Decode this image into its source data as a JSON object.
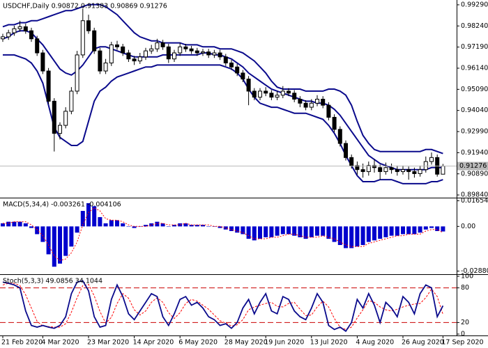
{
  "chart_data": [
    {
      "type": "candlestick",
      "title": "USDCHF,Daily  0.90872 0.91383 0.90869 0.91276",
      "categories": [
        "21 Feb 2020",
        null,
        null,
        null,
        null,
        null,
        null,
        "4 Mar 2020",
        null,
        null,
        null,
        null,
        null,
        null,
        null,
        "23 Mar 2020",
        null,
        null,
        null,
        null,
        null,
        null,
        null,
        "14 Apr 2020",
        null,
        null,
        null,
        null,
        null,
        null,
        null,
        "6 May 2020",
        null,
        null,
        null,
        null,
        null,
        null,
        null,
        "28 May 2020",
        null,
        null,
        null,
        null,
        null,
        null,
        "19 Jun 2020",
        null,
        null,
        null,
        null,
        null,
        null,
        null,
        "13 Jul 2020",
        null,
        null,
        null,
        null,
        null,
        null,
        null,
        "4 Aug 2020",
        null,
        null,
        null,
        null,
        null,
        null,
        null,
        "26 Aug 2020",
        null,
        null,
        null,
        null,
        null,
        null,
        "17 Sep 2020"
      ],
      "open": [
        0.976,
        0.977,
        0.979,
        0.981,
        0.982,
        0.98,
        0.976,
        0.969,
        0.96,
        0.945,
        0.929,
        0.933,
        0.94,
        0.95,
        0.968,
        0.985,
        0.98,
        0.97,
        0.96,
        0.964,
        0.973,
        0.972,
        0.969,
        0.966,
        0.965,
        0.967,
        0.97,
        0.971,
        0.974,
        0.972,
        0.966,
        0.969,
        0.972,
        0.971,
        0.97,
        0.969,
        0.9695,
        0.968,
        0.969,
        0.967,
        0.964,
        0.962,
        0.959,
        0.956,
        0.95,
        0.947,
        0.95,
        0.949,
        0.947,
        0.948,
        0.95,
        0.949,
        0.946,
        0.944,
        0.942,
        0.944,
        0.946,
        0.943,
        0.937,
        0.931,
        0.924,
        0.917,
        0.913,
        0.911,
        0.91,
        0.913,
        0.912,
        0.91,
        0.912,
        0.911,
        0.91,
        0.911,
        0.91,
        0.909,
        0.911,
        0.915,
        0.917,
        0.90872
      ],
      "high": [
        0.9785,
        0.9805,
        0.9825,
        0.985,
        0.9835,
        0.9815,
        0.9775,
        0.9705,
        0.9615,
        0.9465,
        0.9345,
        0.942,
        0.952,
        0.97,
        0.991,
        0.988,
        0.9815,
        0.9715,
        0.966,
        0.9745,
        0.975,
        0.9735,
        0.9705,
        0.9675,
        0.969,
        0.9715,
        0.973,
        0.976,
        0.9755,
        0.9735,
        0.9705,
        0.974,
        0.9735,
        0.9725,
        0.9715,
        0.971,
        0.971,
        0.9705,
        0.9705,
        0.9685,
        0.9655,
        0.9635,
        0.9605,
        0.9575,
        0.9515,
        0.9515,
        0.952,
        0.9505,
        0.95,
        0.9525,
        0.9515,
        0.9505,
        0.9475,
        0.9455,
        0.946,
        0.948,
        0.9475,
        0.9445,
        0.9385,
        0.9325,
        0.9255,
        0.9185,
        0.915,
        0.914,
        0.915,
        0.916,
        0.9135,
        0.9145,
        0.914,
        0.913,
        0.913,
        0.9125,
        0.912,
        0.913,
        0.9175,
        0.9195,
        0.9185,
        0.91383
      ],
      "low": [
        0.9745,
        0.9755,
        0.9775,
        0.9795,
        0.9785,
        0.9745,
        0.9675,
        0.9585,
        0.9435,
        0.92,
        0.926,
        0.9315,
        0.9385,
        0.9485,
        0.9665,
        0.9785,
        0.9685,
        0.9585,
        0.9585,
        0.9625,
        0.9705,
        0.9675,
        0.9645,
        0.963,
        0.9635,
        0.9655,
        0.9685,
        0.9695,
        0.9705,
        0.964,
        0.9645,
        0.9675,
        0.9695,
        0.9685,
        0.9675,
        0.9675,
        0.9665,
        0.9665,
        0.9655,
        0.9625,
        0.9605,
        0.9575,
        0.9545,
        0.943,
        0.9455,
        0.9455,
        0.9475,
        0.9455,
        0.9455,
        0.9465,
        0.9475,
        0.9445,
        0.942,
        0.9405,
        0.9405,
        0.9425,
        0.9415,
        0.9355,
        0.9295,
        0.9225,
        0.9155,
        0.9115,
        0.9085,
        0.907,
        0.908,
        0.9095,
        0.906,
        0.9085,
        0.909,
        0.908,
        0.9085,
        0.906,
        0.907,
        0.9075,
        0.9095,
        0.9135,
        0.9075,
        0.90869
      ],
      "close": [
        0.977,
        0.979,
        0.981,
        0.982,
        0.98,
        0.976,
        0.969,
        0.96,
        0.945,
        0.929,
        0.933,
        0.94,
        0.95,
        0.968,
        0.985,
        0.98,
        0.97,
        0.96,
        0.964,
        0.973,
        0.972,
        0.969,
        0.966,
        0.965,
        0.967,
        0.97,
        0.971,
        0.974,
        0.972,
        0.966,
        0.969,
        0.972,
        0.971,
        0.97,
        0.969,
        0.9695,
        0.968,
        0.969,
        0.967,
        0.964,
        0.962,
        0.959,
        0.956,
        0.95,
        0.947,
        0.95,
        0.949,
        0.947,
        0.948,
        0.95,
        0.949,
        0.946,
        0.944,
        0.942,
        0.944,
        0.946,
        0.943,
        0.937,
        0.931,
        0.924,
        0.917,
        0.913,
        0.911,
        0.91,
        0.913,
        0.912,
        0.91,
        0.912,
        0.911,
        0.91,
        0.911,
        0.91,
        0.909,
        0.911,
        0.915,
        0.917,
        0.90872,
        0.91276
      ],
      "upper_band": [
        0.982,
        0.983,
        0.983,
        0.984,
        0.984,
        0.985,
        0.985,
        0.986,
        0.987,
        0.988,
        0.989,
        0.99,
        0.99,
        0.991,
        0.992,
        0.993,
        0.993,
        0.993,
        0.992,
        0.99,
        0.988,
        0.985,
        0.982,
        0.979,
        0.977,
        0.976,
        0.975,
        0.975,
        0.974,
        0.974,
        0.974,
        0.974,
        0.973,
        0.973,
        0.973,
        0.972,
        0.972,
        0.972,
        0.971,
        0.971,
        0.971,
        0.97,
        0.969,
        0.967,
        0.965,
        0.962,
        0.959,
        0.955,
        0.952,
        0.951,
        0.951,
        0.951,
        0.951,
        0.95,
        0.95,
        0.95,
        0.95,
        0.951,
        0.951,
        0.95,
        0.948,
        0.943,
        0.935,
        0.928,
        0.924,
        0.921,
        0.92,
        0.92,
        0.92,
        0.92,
        0.92,
        0.92,
        0.92,
        0.92,
        0.921,
        0.921,
        0.92,
        0.919
      ],
      "middle_band": [
        0.976,
        0.977,
        0.979,
        0.98,
        0.98,
        0.979,
        0.976,
        0.973,
        0.969,
        0.965,
        0.961,
        0.959,
        0.958,
        0.96,
        0.963,
        0.967,
        0.971,
        0.972,
        0.972,
        0.971,
        0.97,
        0.969,
        0.968,
        0.967,
        0.967,
        0.967,
        0.967,
        0.967,
        0.968,
        0.968,
        0.968,
        0.968,
        0.968,
        0.968,
        0.968,
        0.969,
        0.969,
        0.968,
        0.968,
        0.967,
        0.966,
        0.964,
        0.962,
        0.959,
        0.957,
        0.955,
        0.953,
        0.951,
        0.95,
        0.949,
        0.948,
        0.947,
        0.946,
        0.945,
        0.945,
        0.944,
        0.944,
        0.943,
        0.941,
        0.938,
        0.934,
        0.93,
        0.926,
        0.922,
        0.918,
        0.916,
        0.914,
        0.913,
        0.912,
        0.911,
        0.911,
        0.911,
        0.911,
        0.911,
        0.911,
        0.912,
        0.912,
        0.912
      ],
      "lower_band": [
        0.968,
        0.968,
        0.968,
        0.967,
        0.966,
        0.964,
        0.96,
        0.954,
        0.943,
        0.932,
        0.927,
        0.925,
        0.923,
        0.923,
        0.925,
        0.935,
        0.945,
        0.95,
        0.952,
        0.955,
        0.957,
        0.958,
        0.959,
        0.96,
        0.961,
        0.962,
        0.962,
        0.963,
        0.963,
        0.963,
        0.963,
        0.963,
        0.963,
        0.963,
        0.963,
        0.963,
        0.963,
        0.963,
        0.963,
        0.962,
        0.961,
        0.959,
        0.956,
        0.951,
        0.947,
        0.944,
        0.943,
        0.942,
        0.942,
        0.941,
        0.94,
        0.939,
        0.939,
        0.939,
        0.938,
        0.937,
        0.936,
        0.933,
        0.929,
        0.924,
        0.918,
        0.913,
        0.908,
        0.905,
        0.905,
        0.905,
        0.906,
        0.906,
        0.906,
        0.905,
        0.904,
        0.904,
        0.904,
        0.904,
        0.904,
        0.905,
        0.905,
        0.906
      ],
      "current_price": 0.91276,
      "candle_color": "#000000",
      "up_body_color": "#ffffff",
      "down_body_color": "#000000",
      "band_color": "#0a0a8c",
      "price_line_color": "#b8b8b8",
      "ylim": [
        0.8974,
        0.9946
      ],
      "yticks": [
        {
          "value": 0.9929,
          "label": "0.99290"
        },
        {
          "value": 0.9824,
          "label": "0.98240"
        },
        {
          "value": 0.9719,
          "label": "0.97190"
        },
        {
          "value": 0.9614,
          "label": "0.96140"
        },
        {
          "value": 0.9509,
          "label": "0.95090"
        },
        {
          "value": 0.9404,
          "label": "0.94040"
        },
        {
          "value": 0.9299,
          "label": "0.92990"
        },
        {
          "value": 0.9194,
          "label": "0.91940"
        },
        {
          "value": 0.9089,
          "label": "0.90890"
        },
        {
          "value": 0.8984,
          "label": "0.89840"
        }
      ]
    },
    {
      "type": "macd",
      "title": "MACD(5,34,4) -0.003261 -0.004106",
      "values": [
        0.002,
        0.003,
        0.003,
        0.003,
        0.002,
        -0.001,
        -0.005,
        -0.01,
        -0.018,
        -0.026,
        -0.024,
        -0.019,
        -0.013,
        -0.004,
        0.01,
        0.015,
        0.013,
        0.006,
        0.002,
        0.004,
        0.004,
        0.002,
        0.0,
        -0.001,
        0.0,
        0.001,
        0.002,
        0.003,
        0.002,
        0.0,
        0.001,
        0.002,
        0.002,
        0.001,
        0.001,
        0.001,
        0.0,
        0.0,
        -0.001,
        -0.002,
        -0.003,
        -0.004,
        -0.005,
        -0.008,
        -0.009,
        -0.008,
        -0.007,
        -0.007,
        -0.006,
        -0.005,
        -0.005,
        -0.006,
        -0.007,
        -0.008,
        -0.007,
        -0.006,
        -0.006,
        -0.008,
        -0.01,
        -0.012,
        -0.014,
        -0.014,
        -0.013,
        -0.012,
        -0.01,
        -0.009,
        -0.008,
        -0.007,
        -0.006,
        -0.006,
        -0.005,
        -0.005,
        -0.005,
        -0.004,
        -0.002,
        -0.001,
        -0.003,
        -0.003261
      ],
      "signal": [
        0.002,
        0.002,
        0.003,
        0.003,
        0.003,
        0.001,
        -0.002,
        -0.006,
        -0.012,
        -0.019,
        -0.022,
        -0.021,
        -0.017,
        -0.01,
        0.001,
        0.009,
        0.012,
        0.01,
        0.005,
        0.004,
        0.004,
        0.003,
        0.001,
        0.0,
        0.0,
        0.0,
        0.001,
        0.002,
        0.002,
        0.001,
        0.001,
        0.001,
        0.002,
        0.001,
        0.001,
        0.001,
        0.001,
        0.0,
        0.0,
        -0.001,
        -0.002,
        -0.003,
        -0.004,
        -0.006,
        -0.008,
        -0.008,
        -0.008,
        -0.007,
        -0.007,
        -0.006,
        -0.005,
        -0.005,
        -0.006,
        -0.007,
        -0.007,
        -0.007,
        -0.006,
        -0.007,
        -0.008,
        -0.01,
        -0.012,
        -0.013,
        -0.013,
        -0.013,
        -0.011,
        -0.01,
        -0.009,
        -0.008,
        -0.007,
        -0.006,
        -0.006,
        -0.005,
        -0.005,
        -0.005,
        -0.003,
        -0.002,
        -0.002,
        -0.004106
      ],
      "color": "#0000cd",
      "signal_color": "#ff0000",
      "ylim": [
        -0.0295,
        0.0172
      ],
      "yticks": [
        0.016545,
        {
          "value": 0,
          "label": "0.00"
        },
        -0.028807
      ]
    },
    {
      "type": "stochastic",
      "title": "Stoch(5,3,3) 49.0856 34.1044",
      "values": [
        90,
        88,
        85,
        80,
        40,
        15,
        12,
        15,
        12,
        10,
        15,
        30,
        70,
        90,
        92,
        75,
        30,
        12,
        15,
        60,
        85,
        65,
        35,
        25,
        40,
        55,
        70,
        65,
        30,
        15,
        35,
        60,
        65,
        50,
        55,
        45,
        30,
        25,
        15,
        18,
        10,
        20,
        45,
        60,
        35,
        55,
        70,
        40,
        35,
        65,
        60,
        40,
        30,
        25,
        45,
        70,
        55,
        15,
        8,
        12,
        5,
        20,
        60,
        45,
        70,
        50,
        20,
        55,
        45,
        30,
        65,
        55,
        35,
        70,
        85,
        80,
        30,
        49.0856
      ],
      "signal": [
        85,
        88,
        88,
        84,
        68,
        45,
        22,
        14,
        13,
        12,
        12,
        18,
        38,
        63,
        84,
        86,
        66,
        39,
        19,
        29,
        53,
        70,
        62,
        42,
        33,
        40,
        55,
        63,
        55,
        37,
        27,
        37,
        53,
        60,
        57,
        50,
        43,
        33,
        23,
        19,
        14,
        16,
        25,
        42,
        47,
        50,
        53,
        55,
        48,
        47,
        53,
        55,
        43,
        32,
        33,
        47,
        57,
        47,
        27,
        12,
        8,
        12,
        28,
        42,
        58,
        55,
        47,
        42,
        40,
        43,
        47,
        50,
        52,
        53,
        63,
        78,
        65,
        34.1044
      ],
      "levels": [
        80,
        20
      ],
      "color": "#0a0a8c",
      "signal_color": "#ff0000",
      "level_color": "#cc0000",
      "ylim": [
        0,
        100
      ],
      "yticks": [
        100,
        80,
        20,
        0
      ]
    }
  ]
}
